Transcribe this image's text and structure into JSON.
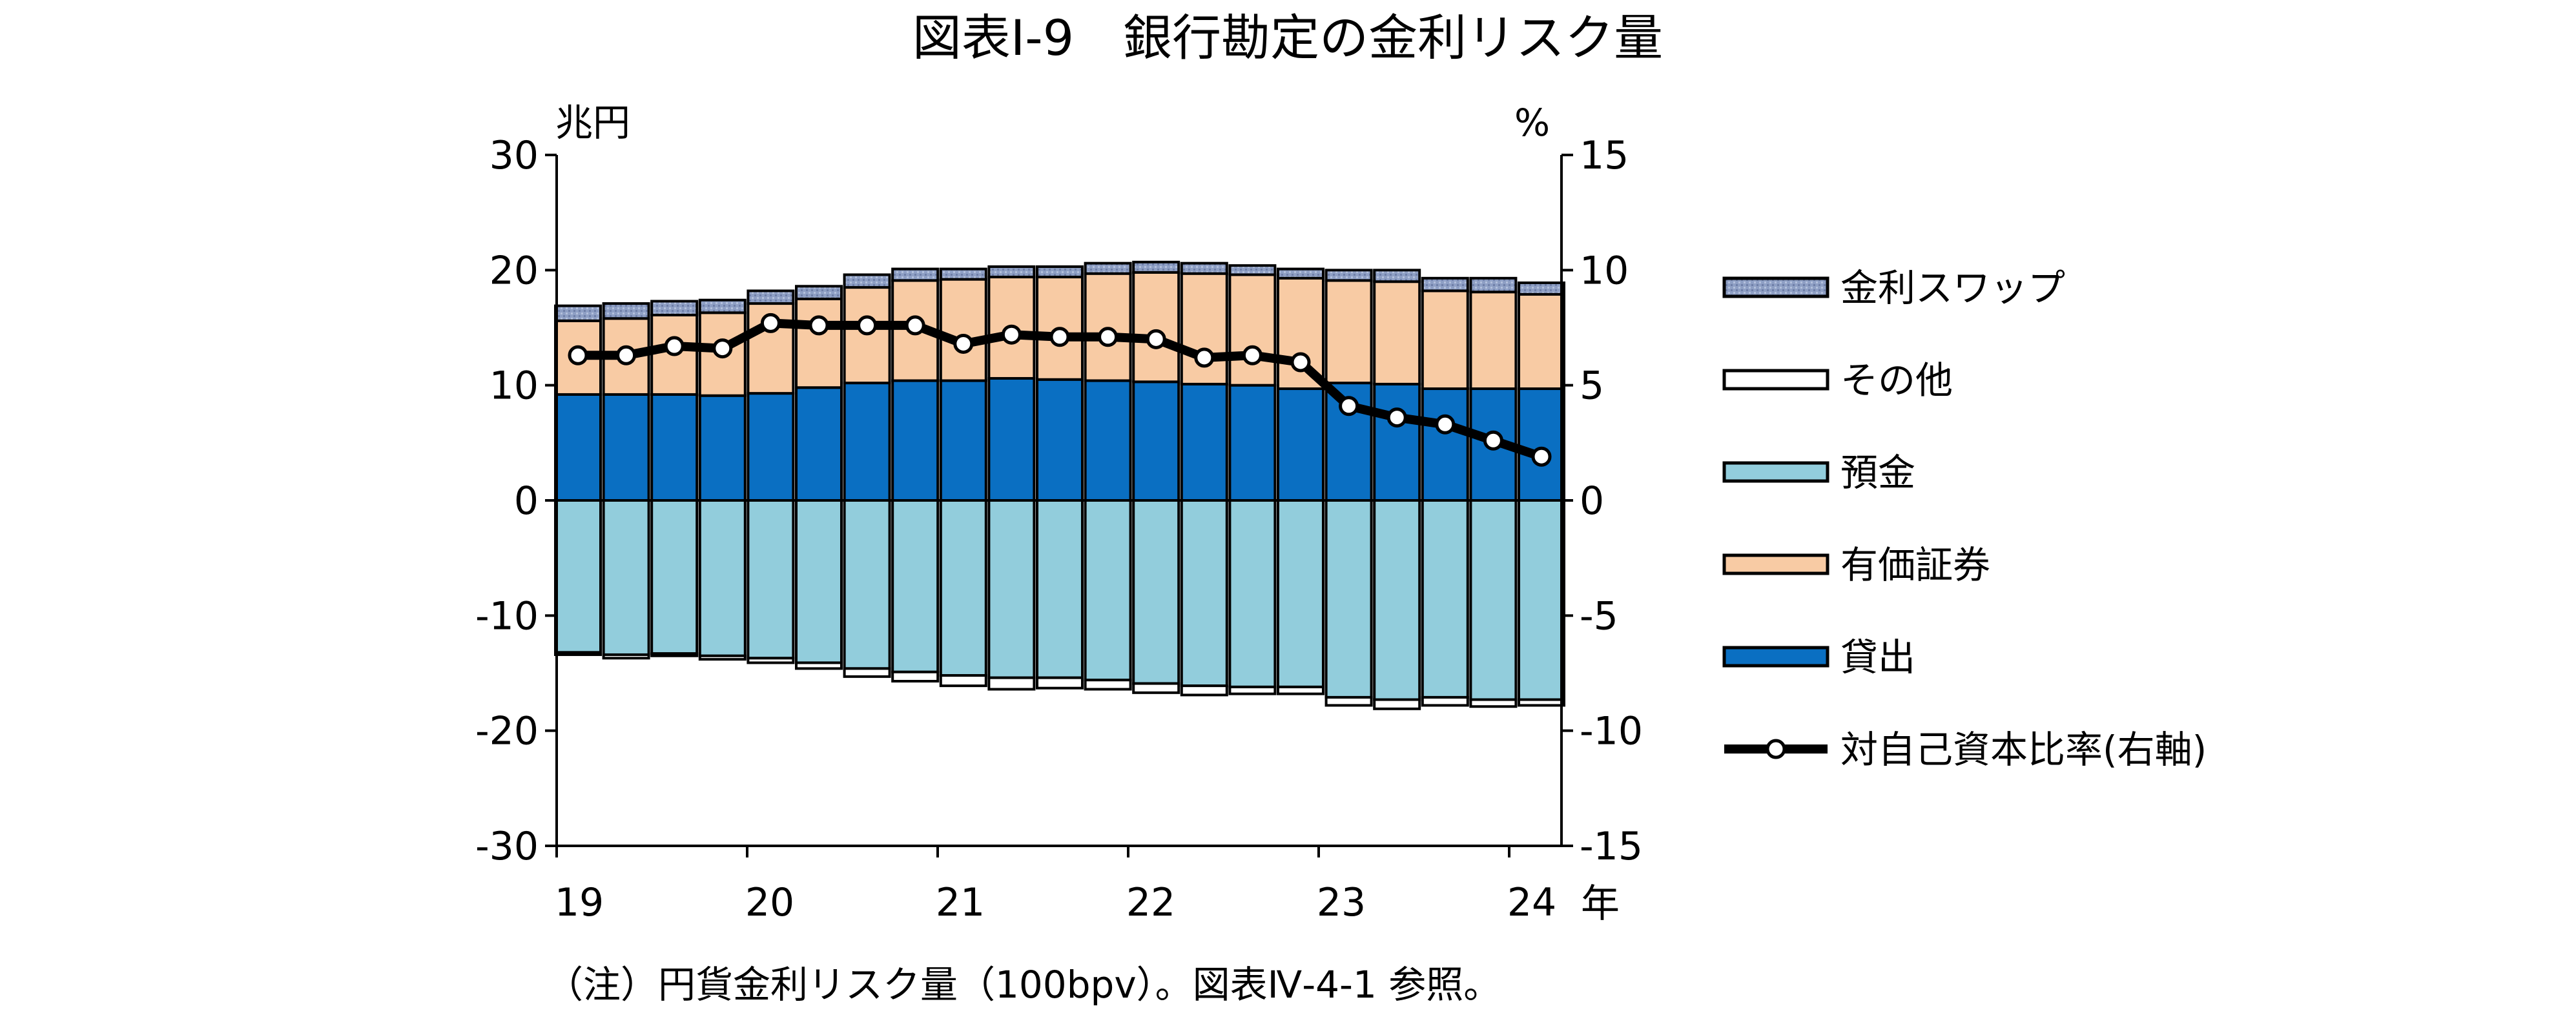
{
  "chart_data": {
    "type": "bar",
    "title": "図表Ⅰ-9　銀行勘定の金利リスク量",
    "note": "（注）円貨金利リスク量（100bpv）。図表Ⅳ-4-1 参照。",
    "left_unit": "兆円",
    "right_unit": "%",
    "x_unit": "年",
    "ylim": [
      -30,
      30
    ],
    "ylim_right": [
      -15,
      15
    ],
    "yticks_left": [
      "30",
      "20",
      "10",
      "0",
      "-10",
      "-20",
      "-30"
    ],
    "yticks_right": [
      "15",
      "10",
      "5",
      "0",
      "-5",
      "-10",
      "-15"
    ],
    "year_labels": [
      "19",
      "20",
      "21",
      "22",
      "23",
      "24"
    ],
    "stacked": true,
    "categories": [
      "19Q1",
      "19Q2",
      "19Q3",
      "19Q4",
      "20Q1",
      "20Q2",
      "20Q3",
      "20Q4",
      "21Q1",
      "21Q2",
      "21Q3",
      "21Q4",
      "22Q1",
      "22Q2",
      "22Q3",
      "22Q4",
      "23Q1",
      "23Q2",
      "23Q3",
      "23Q4",
      "24Q1"
    ],
    "colors": {
      "loans": "#0a6fc2",
      "securities": "#f8cba4",
      "swaps": "#8e9fc4",
      "other": "#ffffff",
      "deposits": "#92cddc",
      "ratio": "#000000"
    },
    "series": [
      {
        "name": "貸出",
        "key": "loans",
        "axis": "left",
        "values": [
          9.2,
          9.2,
          9.2,
          9.1,
          9.3,
          9.8,
          10.2,
          10.4,
          10.4,
          10.6,
          10.5,
          10.4,
          10.3,
          10.1,
          10.0,
          9.7,
          10.2,
          10.1,
          9.7,
          9.7,
          9.7
        ]
      },
      {
        "name": "有価証券",
        "key": "securities",
        "axis": "left",
        "values": [
          6.4,
          6.6,
          6.9,
          7.2,
          7.8,
          7.7,
          8.3,
          8.7,
          8.8,
          8.8,
          8.9,
          9.3,
          9.5,
          9.6,
          9.6,
          9.6,
          8.9,
          8.9,
          8.5,
          8.4,
          8.2
        ]
      },
      {
        "name": "金利スワップ",
        "key": "swaps",
        "axis": "left",
        "values": [
          1.3,
          1.3,
          1.2,
          1.1,
          1.1,
          1.1,
          1.1,
          1.0,
          0.9,
          0.9,
          0.9,
          0.9,
          0.9,
          0.9,
          0.8,
          0.8,
          0.9,
          1.0,
          1.1,
          1.2,
          1.0
        ]
      },
      {
        "name": "その他",
        "key": "other",
        "axis": "left",
        "values": [
          -0.2,
          -0.3,
          -0.2,
          -0.3,
          -0.4,
          -0.5,
          -0.7,
          -0.8,
          -0.9,
          -1.0,
          -0.9,
          -0.8,
          -0.8,
          -0.8,
          -0.6,
          -0.6,
          -0.7,
          -0.8,
          -0.7,
          -0.6,
          -0.5
        ]
      },
      {
        "name": "預金",
        "key": "deposits",
        "axis": "left",
        "values": [
          -13.2,
          -13.4,
          -13.3,
          -13.5,
          -13.7,
          -14.1,
          -14.6,
          -14.9,
          -15.2,
          -15.4,
          -15.4,
          -15.6,
          -15.9,
          -16.1,
          -16.2,
          -16.2,
          -17.1,
          -17.3,
          -17.1,
          -17.3,
          -17.3
        ]
      },
      {
        "name": "対自己資本比率(右軸)",
        "key": "ratio",
        "axis": "right",
        "type": "line",
        "values": [
          6.3,
          6.3,
          6.7,
          6.6,
          7.7,
          7.6,
          7.6,
          7.6,
          6.8,
          7.2,
          7.1,
          7.1,
          7.0,
          6.2,
          6.3,
          6.0,
          4.1,
          3.6,
          3.3,
          2.6,
          1.9
        ]
      }
    ],
    "legend": [
      {
        "key": "swaps",
        "label": "金利スワップ"
      },
      {
        "key": "other",
        "label": "その他"
      },
      {
        "key": "deposits",
        "label": "預金"
      },
      {
        "key": "securities",
        "label": "有価証券"
      },
      {
        "key": "loans",
        "label": "貸出"
      },
      {
        "key": "ratio",
        "label": "対自己資本比率(右軸)"
      }
    ],
    "grid": false,
    "legend_position": "right"
  }
}
